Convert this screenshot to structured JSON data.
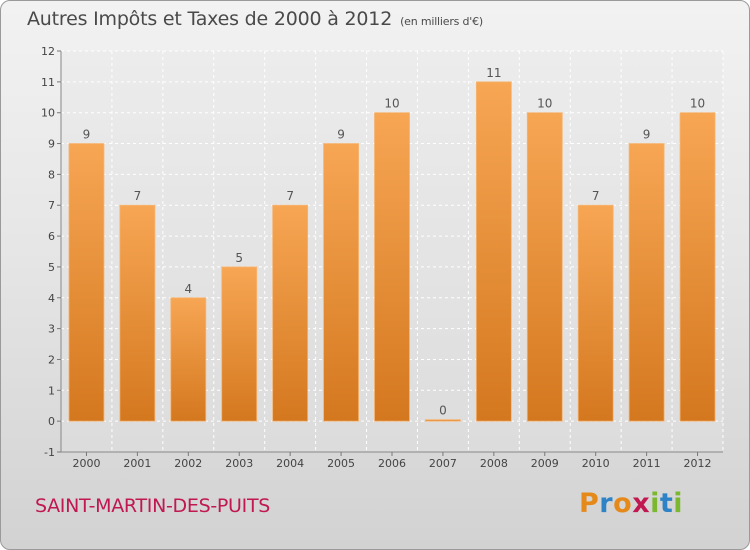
{
  "chart_data": {
    "type": "bar",
    "title": "Autres Impôts et Taxes de 2000 à 2012",
    "unit_label": "(en milliers d'€)",
    "categories": [
      "2000",
      "2001",
      "2002",
      "2003",
      "2004",
      "2005",
      "2006",
      "2007",
      "2008",
      "2009",
      "2010",
      "2011",
      "2012"
    ],
    "values": [
      9,
      7,
      4,
      5,
      7,
      9,
      10,
      0,
      11,
      10,
      7,
      9,
      10
    ],
    "y_ticks": [
      "-1",
      "0",
      "1",
      "2",
      "3",
      "4",
      "5",
      "6",
      "7",
      "8",
      "9",
      "10",
      "11",
      "12"
    ],
    "ylim": [
      -1,
      12
    ],
    "grid": true,
    "bar_color": "#f09a45"
  },
  "footer": {
    "commune": "SAINT-MARTIN-DES-PUITS",
    "logo_letters": [
      "P",
      "r",
      "o",
      "x",
      "i",
      "t",
      "i"
    ],
    "logo_colors": [
      "#e58a1a",
      "#2e83c6",
      "#e58a1a",
      "#c0184f",
      "#7cb82f",
      "#2e83c6",
      "#7cb82f"
    ]
  }
}
